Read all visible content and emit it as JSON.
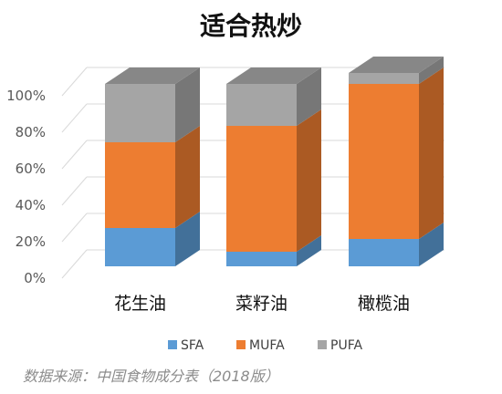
{
  "chart_data": {
    "type": "bar",
    "stacked": true,
    "style": "3d-stacked-column-100%",
    "title": "适合热炒",
    "categories": [
      "花生油",
      "菜籽油",
      "橄榄油"
    ],
    "series": [
      {
        "name": "SFA",
        "color": "#5B9BD5",
        "values": [
          21,
          8,
          15
        ]
      },
      {
        "name": "MUFA",
        "color": "#ED7D31",
        "values": [
          47,
          69,
          85
        ]
      },
      {
        "name": "PUFA",
        "color": "#A5A5A5",
        "values": [
          32,
          23,
          6
        ]
      }
    ],
    "ylim": [
      0,
      100
    ],
    "yticks": [
      "0%",
      "20%",
      "40%",
      "60%",
      "80%",
      "100%"
    ],
    "grid": true,
    "legend_position": "bottom"
  },
  "source_note": "数据来源：中国食物成分表（2018版）"
}
